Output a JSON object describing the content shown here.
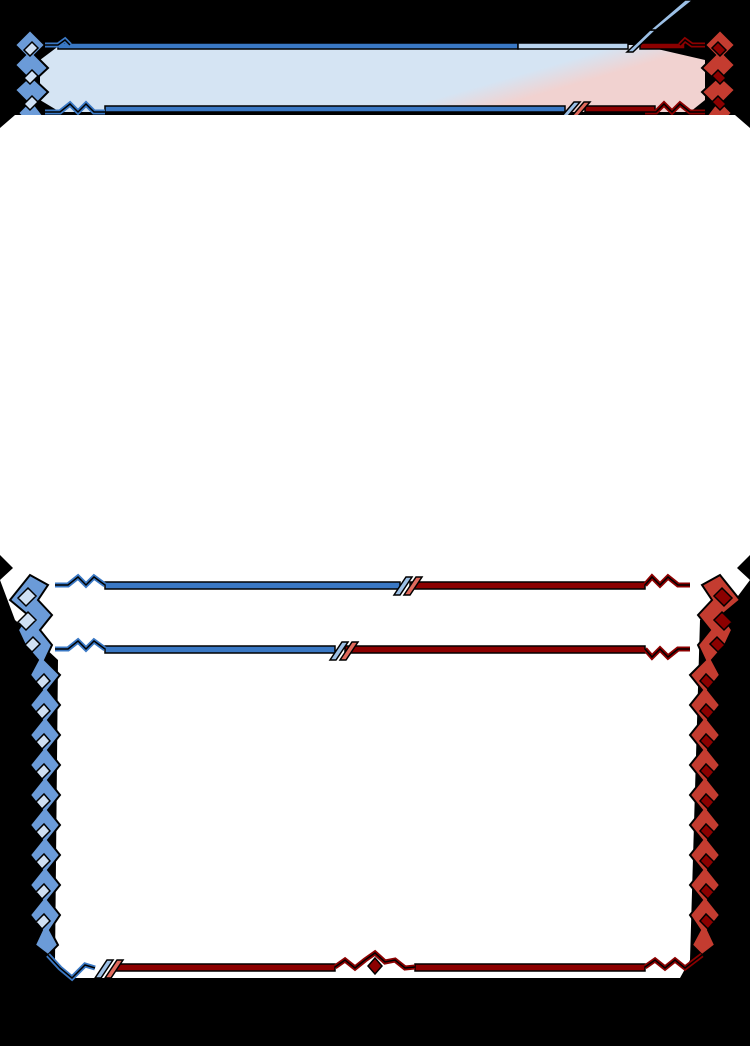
{
  "card": {
    "frame_style": "blue-red split hybrid frame",
    "colors": {
      "background": "#000000",
      "panel": "#ffffff",
      "blue_accent": "#3a78c4",
      "blue_light": "#9cc0e6",
      "blue_fill": "#d5e4f3",
      "red_accent": "#8c0000",
      "red_light": "#e06a5c",
      "red_fill": "#f1d2d0"
    }
  }
}
